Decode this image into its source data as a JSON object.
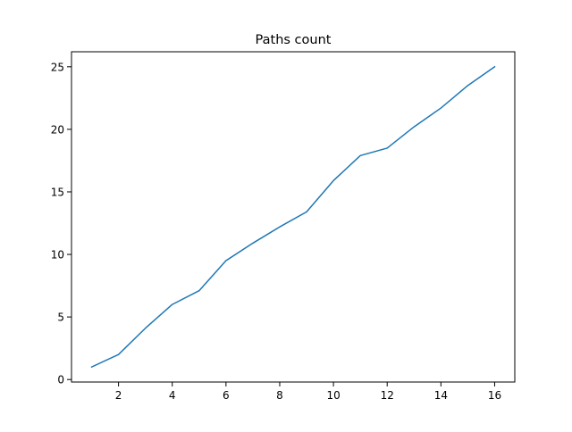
{
  "chart_data": {
    "type": "line",
    "title": "Paths count",
    "xlabel": "",
    "ylabel": "",
    "xlim": [
      0.25,
      16.75
    ],
    "ylim": [
      -0.2,
      26.2
    ],
    "x_ticks": [
      2,
      4,
      6,
      8,
      10,
      12,
      14,
      16
    ],
    "y_ticks": [
      0,
      5,
      10,
      15,
      20,
      25
    ],
    "grid": false,
    "legend": "none",
    "series": [
      {
        "color": "#1f77b4",
        "x": [
          1,
          2,
          3,
          4,
          5,
          6,
          7,
          8,
          9,
          10,
          11,
          12,
          13,
          14,
          15,
          16
        ],
        "y": [
          1.0,
          2.0,
          4.1,
          6.0,
          7.1,
          9.5,
          10.9,
          12.2,
          13.4,
          15.9,
          17.9,
          18.5,
          20.2,
          21.7,
          23.5,
          25.0
        ]
      }
    ]
  }
}
